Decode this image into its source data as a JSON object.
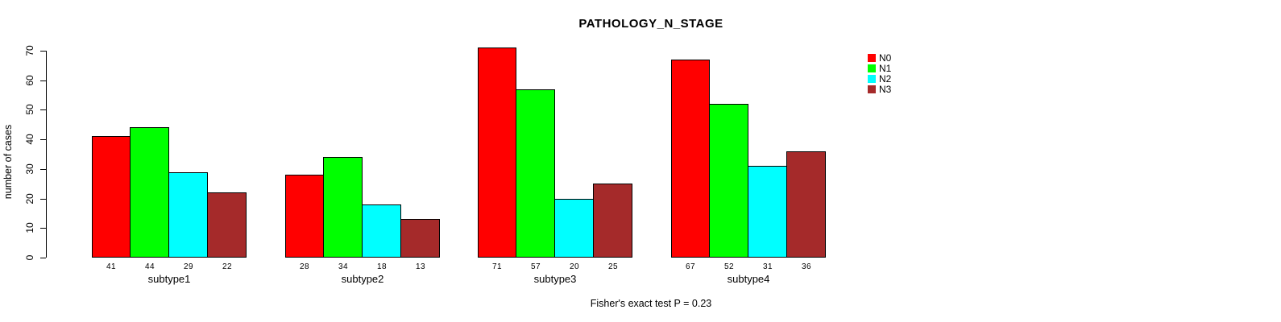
{
  "title": "PATHOLOGY_N_STAGE",
  "y_axis": {
    "label": "number of cases",
    "ticks": [
      0,
      10,
      20,
      30,
      40,
      50,
      60,
      70
    ]
  },
  "footer": "Fisher's exact test P = 0.23",
  "legend": {
    "items": [
      {
        "label": "N0",
        "color": "#FF0000"
      },
      {
        "label": "N1",
        "color": "#00FF00"
      },
      {
        "label": "N2",
        "color": "#00FFFF"
      },
      {
        "label": "N3",
        "color": "#A52A2A"
      }
    ]
  },
  "chart_data": {
    "type": "bar",
    "title": "PATHOLOGY_N_STAGE",
    "xlabel": "",
    "ylabel": "number of cases",
    "ylim": [
      0,
      70
    ],
    "yticks": [
      0,
      10,
      20,
      30,
      40,
      50,
      60,
      70
    ],
    "grid": false,
    "legend_position": "top-right",
    "bar_value_labels": true,
    "annotation": "Fisher's exact test P = 0.23",
    "categories": [
      "subtype1",
      "subtype2",
      "subtype3",
      "subtype4"
    ],
    "series": [
      {
        "name": "N0",
        "color": "#FF0000",
        "values": [
          41,
          28,
          71,
          67
        ]
      },
      {
        "name": "N1",
        "color": "#00FF00",
        "values": [
          44,
          34,
          57,
          52
        ]
      },
      {
        "name": "N2",
        "color": "#00FFFF",
        "values": [
          29,
          18,
          20,
          31
        ]
      },
      {
        "name": "N3",
        "color": "#A52A2A",
        "values": [
          22,
          13,
          25,
          36
        ]
      }
    ]
  }
}
